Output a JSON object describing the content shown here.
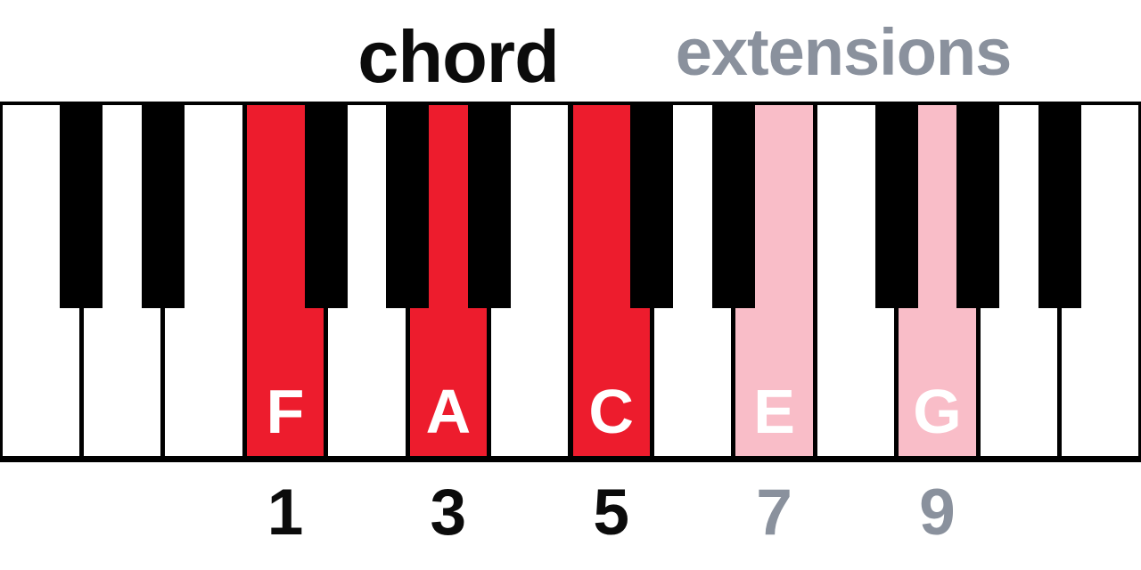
{
  "headers": {
    "chord": {
      "text": "chord",
      "color": "#0b0b0b"
    },
    "extensions": {
      "text": "extensions",
      "color": "#8a919d"
    }
  },
  "roles": {
    "chord": "#ed1c2d",
    "extension": "#f9bdc8"
  },
  "keyboard": {
    "white_key_fill": "#ffffff",
    "black_key_fill": "#000000",
    "outline_color": "#000000",
    "key_label_color": "#ffffff",
    "degree_colors": {
      "chord": "#0b0b0b",
      "extension": "#8a919d"
    },
    "keys": [
      {
        "note": "C",
        "black_after": true
      },
      {
        "note": "D",
        "black_after": true
      },
      {
        "note": "E",
        "black_after": false
      },
      {
        "note": "F",
        "black_after": true,
        "highlight": "chord",
        "label": "F",
        "degree": "1"
      },
      {
        "note": "G",
        "black_after": true
      },
      {
        "note": "A",
        "black_after": true,
        "highlight": "chord",
        "label": "A",
        "degree": "3"
      },
      {
        "note": "B",
        "black_after": false
      },
      {
        "note": "C",
        "black_after": true,
        "highlight": "chord",
        "label": "C",
        "degree": "5"
      },
      {
        "note": "D",
        "black_after": true
      },
      {
        "note": "E",
        "black_after": false,
        "highlight": "extension",
        "label": "E",
        "degree": "7"
      },
      {
        "note": "F",
        "black_after": true
      },
      {
        "note": "G",
        "black_after": true,
        "highlight": "extension",
        "label": "G",
        "degree": "9"
      },
      {
        "note": "A",
        "black_after": true
      },
      {
        "note": "B",
        "black_after": false
      }
    ]
  }
}
